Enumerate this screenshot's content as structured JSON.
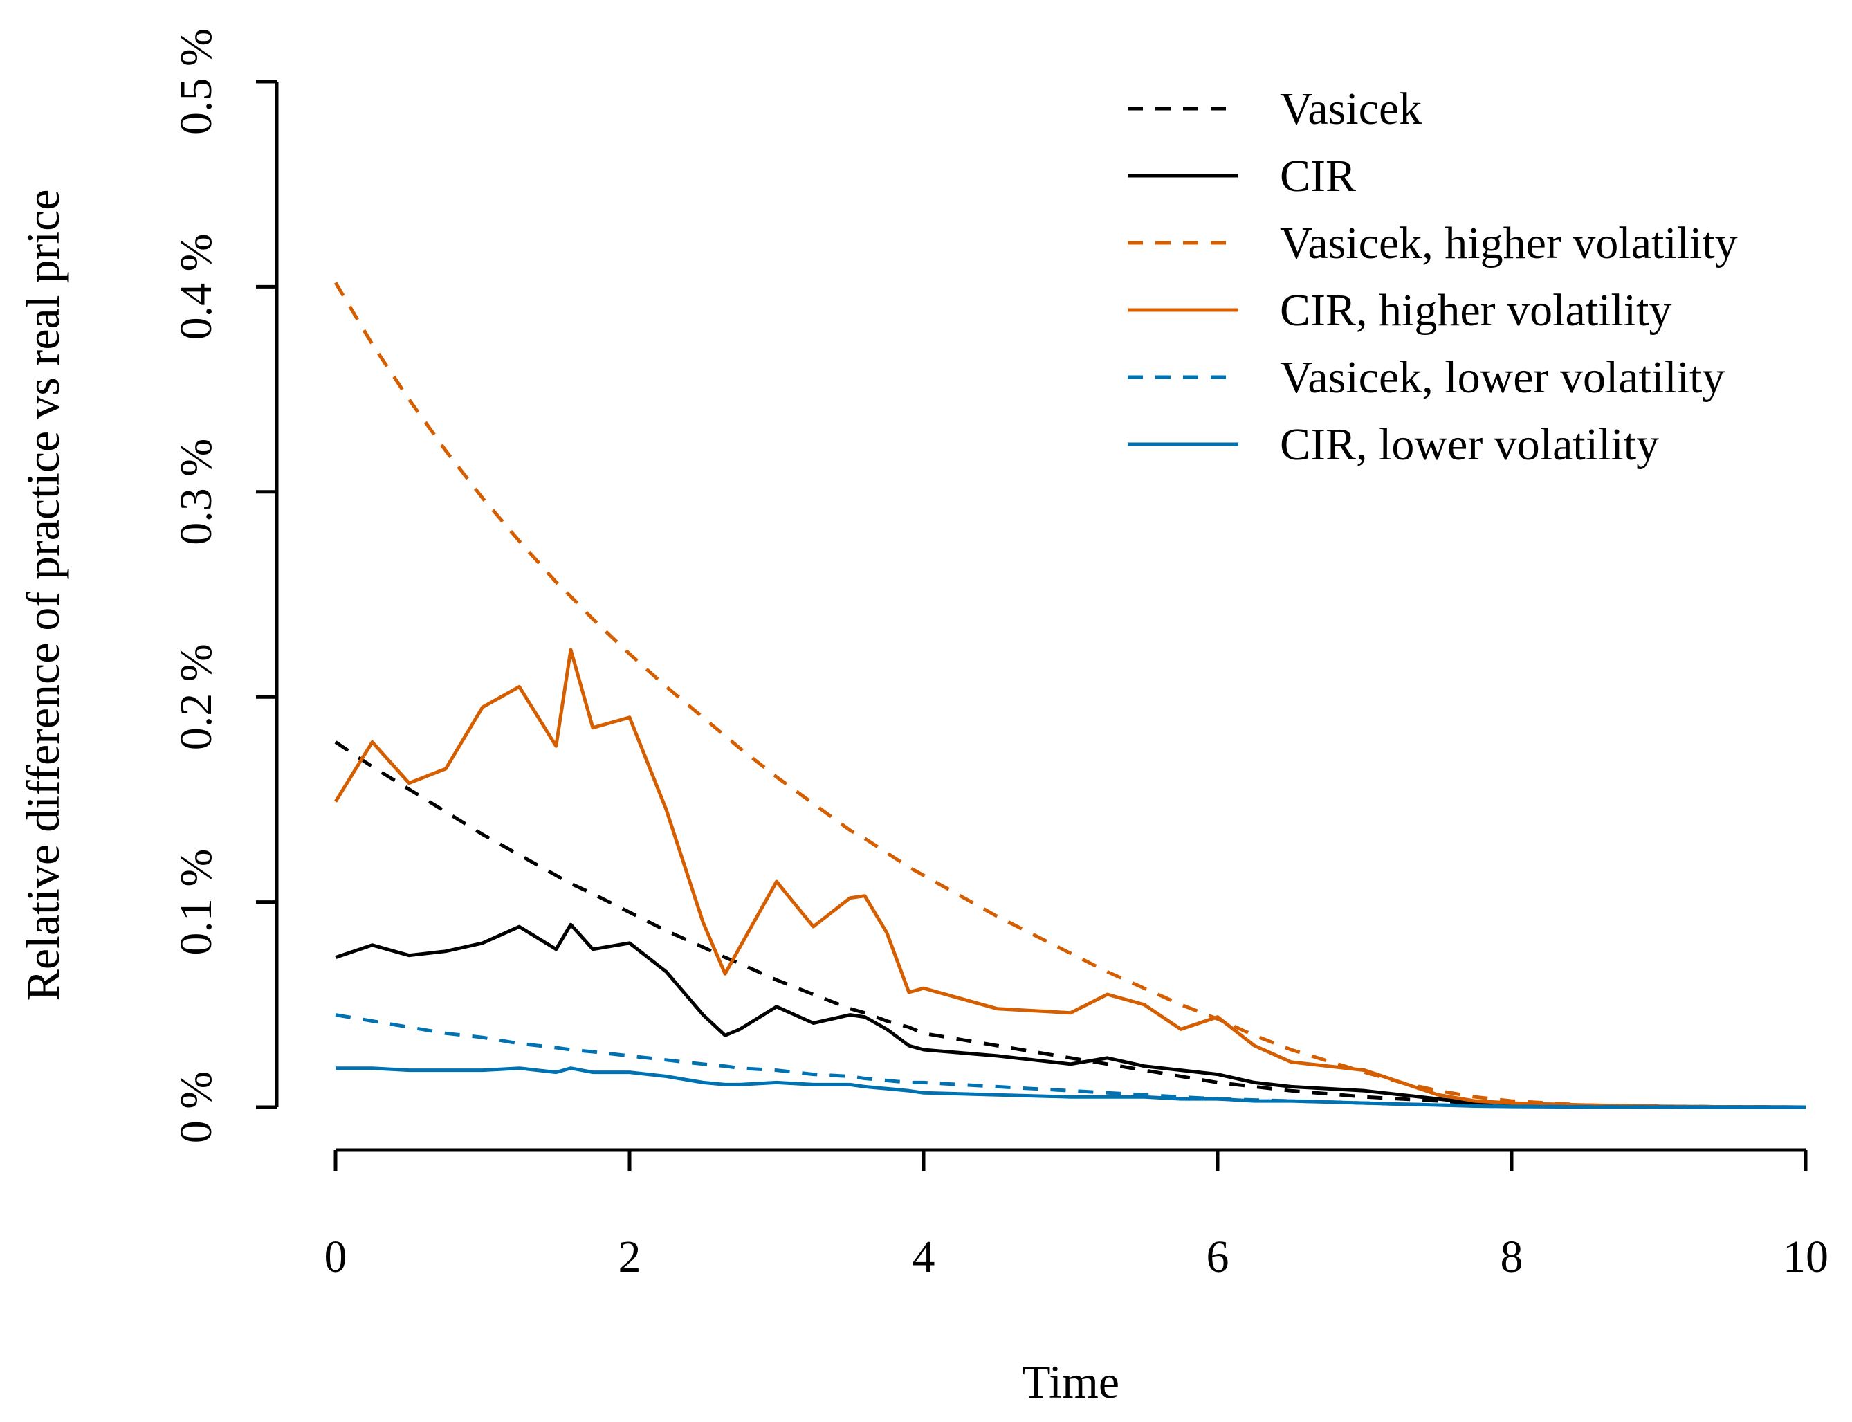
{
  "chart_data": {
    "type": "line",
    "title": "",
    "xlabel": "Time",
    "ylabel": "Relative difference of practice vs real price",
    "xlim": [
      0,
      10
    ],
    "ylim": [
      0,
      0.5
    ],
    "x_ticks": [
      0,
      2,
      4,
      6,
      8,
      10
    ],
    "x_tick_labels": [
      "0",
      "2",
      "4",
      "6",
      "8",
      "10"
    ],
    "y_ticks": [
      0,
      0.1,
      0.2,
      0.3,
      0.4,
      0.5
    ],
    "y_tick_labels": [
      "0 %",
      "0.1 %",
      "0.2 %",
      "0.3 %",
      "0.4 %",
      "0.5 %"
    ],
    "grid": false,
    "legend_position": "top-right",
    "x": [
      0,
      0.25,
      0.5,
      0.75,
      1,
      1.25,
      1.5,
      1.6,
      1.75,
      2,
      2.25,
      2.5,
      2.65,
      2.75,
      3,
      3.25,
      3.5,
      3.6,
      3.75,
      3.9,
      4,
      4.5,
      5,
      5.25,
      5.5,
      5.75,
      6,
      6.25,
      6.5,
      7,
      7.25,
      7.5,
      7.75,
      8,
      8.5,
      9,
      9.5,
      10
    ],
    "series": [
      {
        "name": "Vasicek",
        "color": "#000000",
        "dash": true,
        "values": [
          0.178,
          0.166,
          0.155,
          0.144,
          0.133,
          0.123,
          0.113,
          0.109,
          0.104,
          0.095,
          0.086,
          0.078,
          0.073,
          0.07,
          0.062,
          0.055,
          0.048,
          0.046,
          0.042,
          0.039,
          0.036,
          0.03,
          0.024,
          0.021,
          0.018,
          0.015,
          0.012,
          0.01,
          0.008,
          0.005,
          0.004,
          0.003,
          0.002,
          0.0015,
          0.0008,
          0.0004,
          0.0001,
          0
        ]
      },
      {
        "name": "CIR",
        "color": "#000000",
        "dash": false,
        "values": [
          0.073,
          0.079,
          0.074,
          0.076,
          0.08,
          0.088,
          0.077,
          0.089,
          0.077,
          0.08,
          0.066,
          0.045,
          0.035,
          0.038,
          0.049,
          0.041,
          0.045,
          0.044,
          0.038,
          0.03,
          0.028,
          0.025,
          0.021,
          0.024,
          0.02,
          0.018,
          0.016,
          0.012,
          0.01,
          0.008,
          0.006,
          0.004,
          0.002,
          0.001,
          0.0005,
          0.0002,
          0.0001,
          0
        ]
      },
      {
        "name": "Vasicek, higher volatility",
        "color": "#d55e00",
        "dash": true,
        "values": [
          0.402,
          0.372,
          0.345,
          0.32,
          0.297,
          0.276,
          0.256,
          0.249,
          0.238,
          0.221,
          0.205,
          0.19,
          0.181,
          0.175,
          0.161,
          0.148,
          0.135,
          0.131,
          0.124,
          0.117,
          0.113,
          0.093,
          0.075,
          0.066,
          0.058,
          0.05,
          0.043,
          0.035,
          0.028,
          0.017,
          0.012,
          0.008,
          0.005,
          0.003,
          0.001,
          0.0004,
          0.0001,
          0
        ]
      },
      {
        "name": "CIR, higher volatility",
        "color": "#d55e00",
        "dash": false,
        "values": [
          0.149,
          0.178,
          0.158,
          0.165,
          0.195,
          0.205,
          0.176,
          0.223,
          0.185,
          0.19,
          0.145,
          0.09,
          0.065,
          0.078,
          0.11,
          0.088,
          0.102,
          0.103,
          0.085,
          0.056,
          0.058,
          0.048,
          0.046,
          0.055,
          0.05,
          0.038,
          0.044,
          0.03,
          0.022,
          0.018,
          0.012,
          0.006,
          0.003,
          0.002,
          0.001,
          0.0004,
          0.0001,
          0
        ]
      },
      {
        "name": "Vasicek, lower volatility",
        "color": "#0072b2",
        "dash": true,
        "values": [
          0.045,
          0.042,
          0.039,
          0.036,
          0.034,
          0.031,
          0.029,
          0.028,
          0.027,
          0.025,
          0.023,
          0.021,
          0.02,
          0.019,
          0.018,
          0.016,
          0.015,
          0.014,
          0.013,
          0.012,
          0.012,
          0.01,
          0.008,
          0.007,
          0.006,
          0.005,
          0.004,
          0.0035,
          0.003,
          0.002,
          0.0015,
          0.001,
          0.0006,
          0.0004,
          0.0002,
          0.0001,
          0,
          0
        ]
      },
      {
        "name": "CIR, lower volatility",
        "color": "#0072b2",
        "dash": false,
        "values": [
          0.019,
          0.019,
          0.018,
          0.018,
          0.018,
          0.019,
          0.017,
          0.019,
          0.017,
          0.017,
          0.015,
          0.012,
          0.011,
          0.011,
          0.012,
          0.011,
          0.011,
          0.01,
          0.009,
          0.008,
          0.007,
          0.006,
          0.005,
          0.005,
          0.005,
          0.004,
          0.004,
          0.003,
          0.003,
          0.002,
          0.0015,
          0.001,
          0.0005,
          0.0003,
          0.0001,
          0.0001,
          0,
          0
        ]
      }
    ]
  }
}
